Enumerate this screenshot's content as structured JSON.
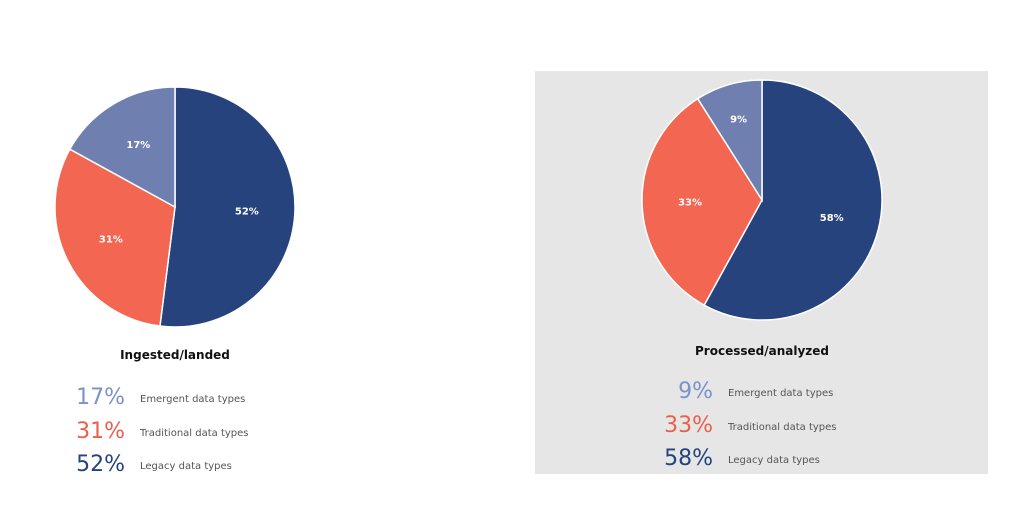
{
  "chart_data": [
    {
      "type": "pie",
      "title": "Ingested/landed",
      "categories": [
        "Legacy data types",
        "Traditional data types",
        "Emergent data types"
      ],
      "values": [
        52,
        31,
        17
      ],
      "labels": [
        "52%",
        "31%",
        "17%"
      ],
      "colors": [
        "#26437e",
        "#f26652",
        "#6e7fb0"
      ],
      "legend": [
        {
          "pct": "17%",
          "label": "Emergent data types",
          "color": "#7b93c9"
        },
        {
          "pct": "31%",
          "label": "Traditional data types",
          "color": "#ea5f4c"
        },
        {
          "pct": "52%",
          "label": "Legacy data types",
          "color": "#26437e"
        }
      ]
    },
    {
      "type": "pie",
      "title": "Processed/analyzed",
      "categories": [
        "Legacy data types",
        "Traditional data types",
        "Emergent data types"
      ],
      "values": [
        58,
        33,
        9
      ],
      "labels": [
        "58%",
        "33%",
        "9%"
      ],
      "colors": [
        "#26437e",
        "#f26652",
        "#6e7fb0"
      ],
      "legend": [
        {
          "pct": "9%",
          "label": "Emergent data types",
          "color": "#7b93c9"
        },
        {
          "pct": "33%",
          "label": "Traditional data types",
          "color": "#ea5f4c"
        },
        {
          "pct": "58%",
          "label": "Legacy data types",
          "color": "#26437e"
        }
      ]
    }
  ]
}
